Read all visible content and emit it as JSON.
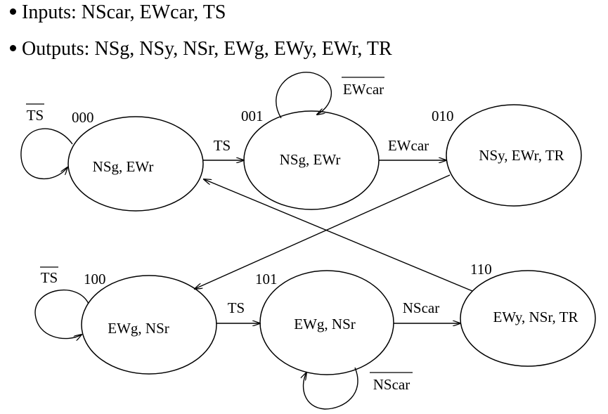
{
  "bullets": {
    "inputs_label": "Inputs:",
    "inputs_values": "NScar, EWcar, TS",
    "outputs_label": "Outputs:",
    "outputs_values": "NSg, NSy, NSr, EWg, EWy, EWr, TR"
  },
  "states": [
    {
      "code": "000",
      "outputs": "NSg, EWr"
    },
    {
      "code": "001",
      "outputs": "NSg, EWr"
    },
    {
      "code": "010",
      "outputs": "NSy, EWr, TR"
    },
    {
      "code": "100",
      "outputs": "EWg, NSr"
    },
    {
      "code": "101",
      "outputs": "EWg, NSr"
    },
    {
      "code": "110",
      "outputs": "EWy, NSr, TR"
    }
  ],
  "transitions": [
    {
      "from": "000",
      "to": "000",
      "label": "TS",
      "negated": true
    },
    {
      "from": "000",
      "to": "001",
      "label": "TS",
      "negated": false
    },
    {
      "from": "001",
      "to": "001",
      "label": "EWcar",
      "negated": true
    },
    {
      "from": "001",
      "to": "010",
      "label": "EWcar",
      "negated": false
    },
    {
      "from": "010",
      "to": "100",
      "label": "",
      "negated": false
    },
    {
      "from": "100",
      "to": "100",
      "label": "TS",
      "negated": true
    },
    {
      "from": "100",
      "to": "101",
      "label": "TS",
      "negated": false
    },
    {
      "from": "101",
      "to": "101",
      "label": "NScar",
      "negated": true
    },
    {
      "from": "101",
      "to": "110",
      "label": "NScar",
      "negated": false
    },
    {
      "from": "110",
      "to": "000",
      "label": "",
      "negated": false
    }
  ]
}
